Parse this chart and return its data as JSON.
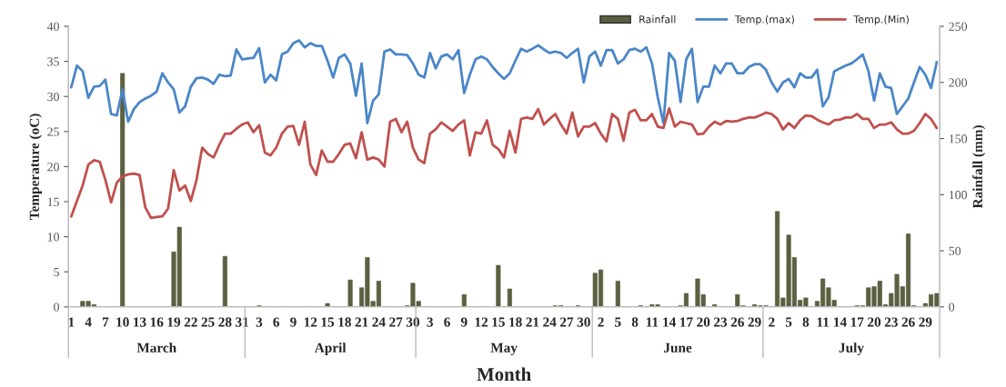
{
  "chart_data": {
    "type": "line",
    "xlabel": "Month",
    "ylabel": "Temperature (oC)",
    "y2label": "Rainfall (mm)",
    "categories": [
      "1",
      null,
      null,
      "4",
      null,
      null,
      "7",
      null,
      null,
      "10",
      null,
      null,
      "13",
      null,
      null,
      "16",
      null,
      null,
      "19",
      null,
      null,
      "22",
      null,
      null,
      "25",
      null,
      null,
      "28",
      null,
      null,
      "31",
      null,
      null,
      "3",
      null,
      null,
      "6",
      null,
      null,
      "9",
      null,
      null,
      "12",
      null,
      null,
      "15",
      null,
      null,
      "18",
      null,
      null,
      "21",
      null,
      null,
      "24",
      null,
      null,
      "27",
      null,
      null,
      "30",
      null,
      null,
      "3",
      null,
      null,
      "6",
      null,
      null,
      "9",
      null,
      null,
      "12",
      null,
      null,
      "15",
      null,
      null,
      "18",
      null,
      null,
      "21",
      null,
      null,
      "24",
      null,
      null,
      "27",
      null,
      null,
      "30",
      null,
      null,
      "2",
      null,
      null,
      "5",
      null,
      null,
      "8",
      null,
      null,
      "11",
      null,
      null,
      "14",
      null,
      null,
      "17",
      null,
      null,
      "20",
      null,
      null,
      "23",
      null,
      null,
      "26",
      null,
      null,
      "29",
      null,
      null,
      "2",
      null,
      null,
      "5",
      null,
      null,
      "8",
      null,
      null,
      "11",
      null,
      null,
      "14",
      null,
      null,
      "17",
      null,
      null,
      "20",
      null,
      null,
      "23",
      null,
      null,
      "26",
      null,
      null,
      "29",
      null,
      null
    ],
    "series": [
      {
        "name": "Rainfall",
        "type": "bar",
        "axis": "y2",
        "color": "#5a6040",
        "values": [
          0,
          0,
          5,
          5,
          2,
          0,
          0,
          0,
          0,
          208,
          0,
          0,
          0,
          0,
          0,
          0,
          0,
          0,
          49,
          71,
          0,
          0,
          0,
          0,
          0,
          0,
          0,
          45,
          0,
          0,
          0,
          0,
          0,
          1,
          0,
          0,
          0,
          0,
          0,
          0,
          0,
          0,
          0,
          0,
          0,
          3,
          0,
          0,
          0,
          24,
          0,
          17,
          44,
          5,
          23,
          0,
          0,
          0,
          0,
          1,
          21,
          5,
          0,
          0,
          0,
          0,
          0,
          0,
          0,
          11,
          0,
          0,
          0,
          0,
          0,
          37,
          0,
          16,
          0,
          0,
          0,
          0,
          0,
          0,
          0,
          1,
          1,
          0,
          0,
          1,
          0,
          0,
          30,
          33,
          0,
          0,
          23,
          0,
          0,
          0,
          1,
          0,
          2,
          2,
          0,
          0,
          0,
          1,
          12,
          0,
          25,
          11,
          0,
          2,
          0,
          0,
          0,
          11,
          1,
          0,
          2,
          1,
          1,
          0,
          85,
          8,
          64,
          44,
          6,
          8,
          0,
          5,
          25,
          17,
          6,
          0,
          0,
          0,
          1,
          1,
          17,
          18,
          23,
          2,
          12,
          29,
          18,
          65,
          1,
          0,
          3,
          11,
          12
        ]
      },
      {
        "name": "Temp.(max)",
        "color": "#4a86c8",
        "values": [
          31.3,
          34.4,
          33.6,
          29.8,
          31.4,
          31.5,
          32.4,
          27.5,
          27.3,
          31.0,
          26.4,
          28.2,
          29.2,
          29.7,
          30.1,
          30.7,
          33.3,
          32.0,
          31.0,
          27.7,
          28.6,
          31.4,
          32.6,
          32.7,
          32.4,
          31.8,
          33.1,
          32.9,
          33.0,
          36.7,
          35.3,
          35.4,
          35.5,
          36.9,
          32.0,
          33.1,
          32.3,
          36.0,
          36.4,
          37.6,
          38.0,
          37.0,
          37.6,
          37.2,
          37.2,
          35.1,
          32.7,
          35.5,
          36.0,
          34.7,
          30.1,
          34.7,
          26.2,
          29.4,
          30.3,
          36.4,
          36.7,
          36.0,
          36.0,
          35.9,
          34.7,
          33.1,
          32.7,
          36.2,
          34.0,
          35.7,
          36.0,
          35.3,
          36.6,
          30.5,
          33.1,
          35.3,
          35.7,
          35.3,
          34.2,
          33.3,
          32.5,
          33.3,
          35.1,
          36.8,
          36.4,
          36.8,
          37.3,
          36.7,
          36.2,
          36.4,
          36.2,
          35.5,
          36.2,
          36.8,
          32.0,
          35.7,
          36.4,
          34.4,
          36.6,
          36.6,
          34.7,
          35.3,
          36.6,
          36.8,
          36.4,
          37.0,
          34.7,
          29.9,
          26.2,
          36.2,
          35.1,
          29.2,
          35.3,
          36.8,
          29.2,
          31.4,
          31.4,
          34.4,
          33.3,
          34.7,
          34.7,
          33.3,
          33.3,
          34.2,
          34.6,
          34.6,
          33.8,
          32.0,
          30.7,
          32.0,
          32.5,
          31.3,
          33.3,
          32.7,
          32.7,
          33.8,
          28.6,
          29.9,
          33.6,
          34.0,
          34.4,
          34.7,
          35.3,
          36.0,
          33.6,
          29.4,
          33.3,
          31.4,
          31.2,
          27.5,
          28.6,
          29.7,
          32.0,
          34.2,
          33.1,
          31.2,
          34.9
        ]
      },
      {
        "name": "Temp.(Min)",
        "color": "#c0504d",
        "values": [
          12.9,
          15.1,
          17.3,
          20.3,
          20.9,
          20.7,
          18.1,
          14.9,
          17.7,
          18.6,
          18.9,
          19.0,
          18.8,
          14.2,
          12.7,
          12.8,
          12.9,
          14.0,
          19.5,
          16.6,
          17.3,
          15.1,
          18.1,
          22.7,
          21.8,
          21.3,
          23.1,
          24.7,
          24.7,
          25.4,
          26.0,
          26.3,
          24.9,
          25.9,
          22.0,
          21.6,
          22.7,
          24.7,
          25.7,
          25.8,
          23.1,
          26.4,
          20.3,
          18.8,
          22.3,
          20.7,
          20.7,
          21.8,
          23.1,
          23.3,
          21.2,
          24.9,
          21.0,
          21.3,
          21.0,
          20.0,
          26.4,
          26.8,
          24.9,
          26.4,
          22.7,
          21.0,
          20.5,
          24.7,
          25.3,
          26.3,
          25.7,
          25.1,
          26.0,
          26.6,
          21.6,
          24.9,
          24.7,
          26.6,
          23.1,
          22.5,
          21.3,
          25.1,
          22.0,
          26.8,
          27.0,
          26.8,
          28.2,
          26.0,
          26.8,
          27.5,
          26.0,
          24.7,
          27.7,
          24.3,
          25.7,
          25.7,
          26.2,
          24.7,
          23.6,
          27.5,
          26.8,
          23.7,
          27.7,
          28.1,
          26.6,
          26.6,
          27.5,
          25.7,
          25.5,
          28.3,
          25.7,
          26.4,
          26.2,
          26.0,
          24.6,
          24.7,
          25.7,
          26.4,
          26.0,
          26.5,
          26.4,
          26.5,
          26.8,
          27.0,
          27.0,
          27.3,
          27.7,
          27.5,
          26.8,
          25.3,
          26.2,
          25.5,
          26.6,
          27.3,
          27.2,
          26.7,
          26.3,
          26.0,
          26.6,
          26.7,
          27.0,
          27.0,
          27.5,
          26.8,
          26.8,
          25.5,
          26.0,
          26.0,
          26.3,
          25.3,
          24.7,
          24.7,
          25.1,
          26.2,
          27.5,
          26.8,
          25.5
        ]
      }
    ],
    "ylim": [
      0,
      40
    ],
    "yticks": [
      0,
      5,
      10,
      15,
      20,
      25,
      30,
      35,
      40
    ],
    "y2lim": [
      0,
      250
    ],
    "y2ticks": [
      0,
      50,
      100,
      150,
      200,
      250
    ],
    "legend": "top right",
    "annotations": [
      "March",
      "April",
      "May",
      "June",
      "July"
    ]
  }
}
